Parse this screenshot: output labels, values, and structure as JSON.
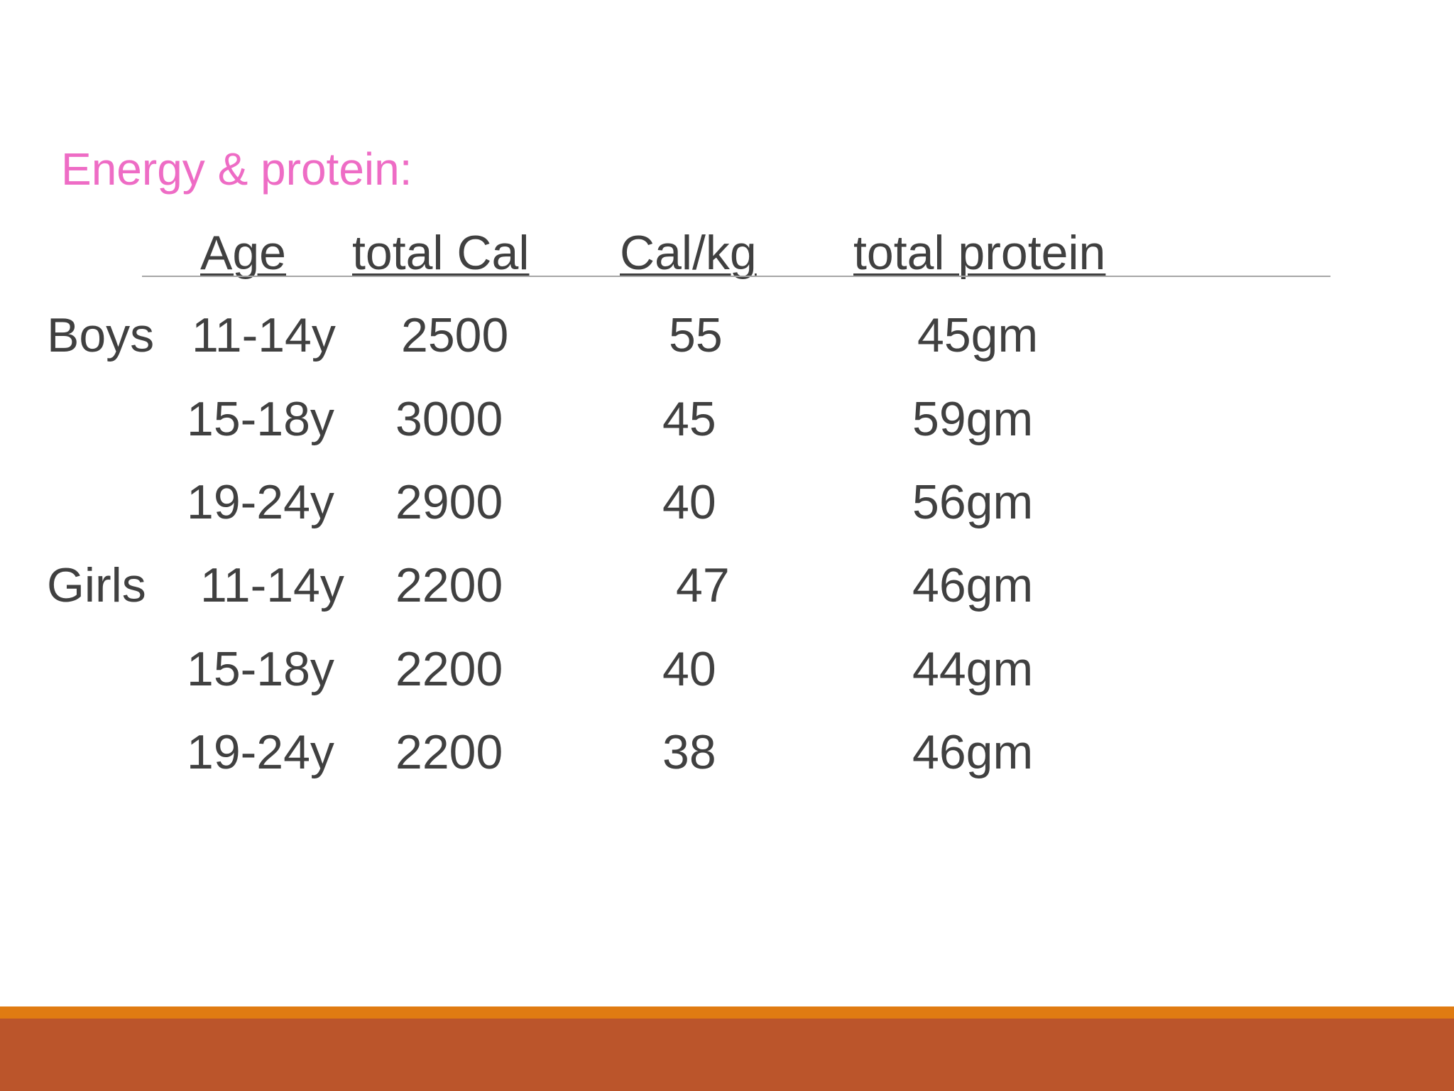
{
  "slide": {
    "title": "Energy & protein:",
    "headers": {
      "age": "Age",
      "total_cal": "total Cal",
      "cal_per_kg": "Cal/kg",
      "total_protein": "total protein"
    },
    "rows": [
      {
        "group": "Boys",
        "age": "11-14y",
        "total_cal": "2500",
        "cal_per_kg": "55",
        "total_protein": "45gm"
      },
      {
        "group": "",
        "age": "15-18y",
        "total_cal": "3000",
        "cal_per_kg": "45",
        "total_protein": "59gm"
      },
      {
        "group": "",
        "age": "19-24y",
        "total_cal": "2900",
        "cal_per_kg": "40",
        "total_protein": "56gm"
      },
      {
        "group": "Girls",
        "age": "11-14y",
        "total_cal": "2200",
        "cal_per_kg": "47",
        "total_protein": "46gm"
      },
      {
        "group": "",
        "age": "15-18y",
        "total_cal": "2200",
        "cal_per_kg": "40",
        "total_protein": "44gm"
      },
      {
        "group": "",
        "age": "19-24y",
        "total_cal": "2200",
        "cal_per_kg": "38",
        "total_protein": "46gm"
      }
    ],
    "colors": {
      "title": "#ee6cc5",
      "text": "#404040",
      "footer_top": "#e07b12",
      "footer_bottom": "#bb552b"
    }
  }
}
